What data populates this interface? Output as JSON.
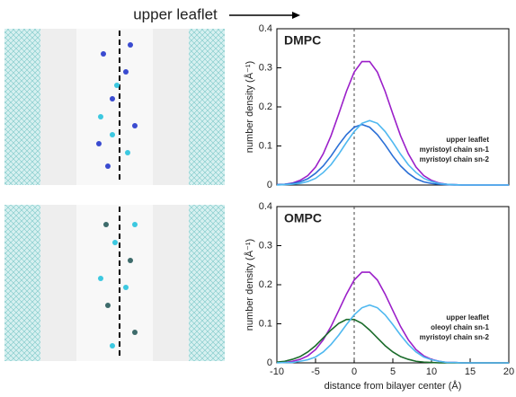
{
  "header": "upper leaflet",
  "chart_data": [
    {
      "type": "line",
      "title": "DMPC",
      "ylabel": "number density (Å⁻¹)",
      "x": [
        -10,
        -9,
        -8,
        -7,
        -6,
        -5,
        -4,
        -3,
        -2,
        -1,
        0,
        1,
        2,
        3,
        4,
        5,
        6,
        7,
        8,
        9,
        10,
        11,
        12,
        13,
        14,
        15,
        16,
        17,
        18,
        19,
        20
      ],
      "series": [
        {
          "name": "upper leaflet",
          "color": "#9b1fc9",
          "values": [
            0.001,
            0.002,
            0.005,
            0.012,
            0.024,
            0.046,
            0.08,
            0.126,
            0.182,
            0.24,
            0.289,
            0.316,
            0.316,
            0.289,
            0.24,
            0.182,
            0.126,
            0.08,
            0.046,
            0.024,
            0.012,
            0.005,
            0.002,
            0.001,
            0,
            0,
            0,
            0,
            0,
            0,
            0
          ]
        },
        {
          "name": "myristoyl chain sn-1",
          "color": "#2a6fd6",
          "values": [
            0.001,
            0.002,
            0.004,
            0.008,
            0.016,
            0.03,
            0.049,
            0.074,
            0.103,
            0.129,
            0.148,
            0.155,
            0.148,
            0.129,
            0.103,
            0.074,
            0.049,
            0.03,
            0.016,
            0.008,
            0.004,
            0.002,
            0.001,
            0,
            0,
            0,
            0,
            0,
            0,
            0,
            0
          ]
        },
        {
          "name": "myristoyl chain sn-2",
          "color": "#4fb8f0",
          "values": [
            0,
            0.001,
            0.002,
            0.004,
            0.009,
            0.017,
            0.032,
            0.052,
            0.079,
            0.109,
            0.137,
            0.158,
            0.165,
            0.158,
            0.137,
            0.109,
            0.079,
            0.052,
            0.032,
            0.017,
            0.009,
            0.004,
            0.002,
            0.001,
            0,
            0,
            0,
            0,
            0,
            0,
            0
          ]
        }
      ],
      "xlim": [
        -10,
        20
      ],
      "ylim": [
        0,
        0.4
      ],
      "yticks": [
        0,
        0.1,
        0.2,
        0.3,
        0.4
      ],
      "vline": 0
    },
    {
      "type": "line",
      "title": "OMPC",
      "ylabel": "number density (Å⁻¹)",
      "xlabel": "distance from bilayer center (Å)",
      "x": [
        -10,
        -9,
        -8,
        -7,
        -6,
        -5,
        -4,
        -3,
        -2,
        -1,
        0,
        1,
        2,
        3,
        4,
        5,
        6,
        7,
        8,
        9,
        10,
        11,
        12,
        13,
        14,
        15,
        16,
        17,
        18,
        19,
        20
      ],
      "series": [
        {
          "name": "upper leaflet",
          "color": "#9b1fc9",
          "values": [
            0.001,
            0.001,
            0.004,
            0.009,
            0.018,
            0.034,
            0.059,
            0.093,
            0.134,
            0.176,
            0.212,
            0.232,
            0.232,
            0.212,
            0.176,
            0.134,
            0.093,
            0.059,
            0.034,
            0.018,
            0.009,
            0.004,
            0.001,
            0.001,
            0,
            0,
            0,
            0,
            0,
            0,
            0
          ]
        },
        {
          "name": "oleoyl chain sn-1",
          "color": "#1a6b2a",
          "values": [
            0.002,
            0.004,
            0.009,
            0.016,
            0.028,
            0.044,
            0.064,
            0.084,
            0.101,
            0.111,
            0.111,
            0.101,
            0.084,
            0.064,
            0.044,
            0.028,
            0.016,
            0.009,
            0.004,
            0.002,
            0.001,
            0,
            0,
            0,
            0,
            0,
            0,
            0,
            0,
            0,
            0
          ]
        },
        {
          "name": "myristoyl chain sn-2",
          "color": "#4fb8f0",
          "values": [
            0,
            0.001,
            0.001,
            0.004,
            0.008,
            0.015,
            0.028,
            0.047,
            0.071,
            0.098,
            0.123,
            0.141,
            0.148,
            0.141,
            0.123,
            0.098,
            0.071,
            0.047,
            0.028,
            0.015,
            0.008,
            0.004,
            0.001,
            0.001,
            0,
            0,
            0,
            0,
            0,
            0,
            0
          ]
        }
      ],
      "xlim": [
        -10,
        20
      ],
      "ylim": [
        0,
        0.4
      ],
      "xticks": [
        -10,
        -5,
        0,
        5,
        10,
        15,
        20
      ],
      "yticks": [
        0,
        0.1,
        0.2,
        0.3,
        0.4
      ],
      "vline": 0
    }
  ]
}
